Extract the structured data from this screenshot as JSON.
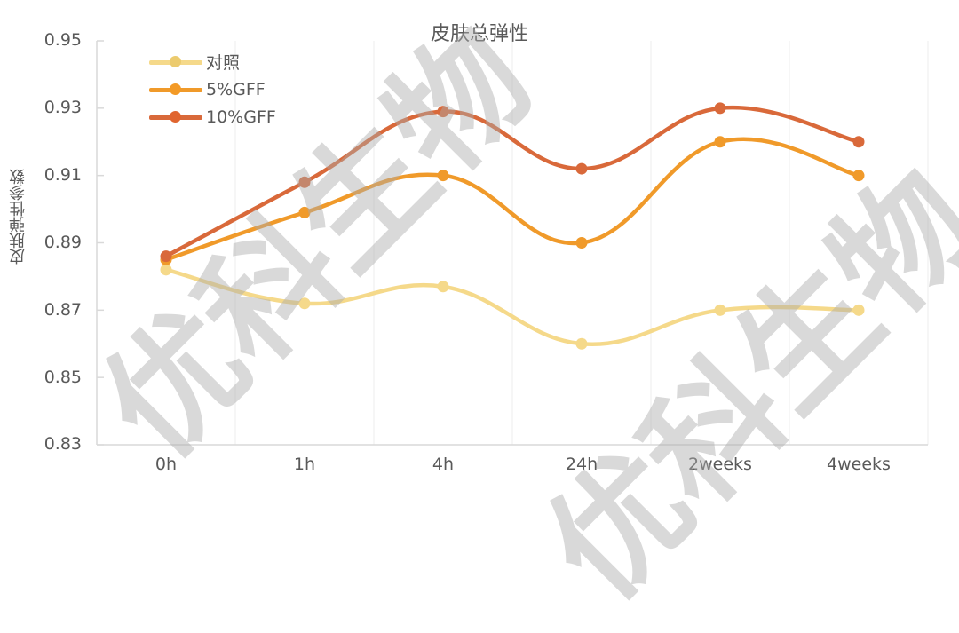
{
  "chart_data": {
    "type": "line",
    "title": "皮肤总弹性",
    "xlabel": "",
    "ylabel": "皮肤弹性参数",
    "categories": [
      "0h",
      "1h",
      "4h",
      "24h",
      "2weeks",
      "4weeks"
    ],
    "ylim": [
      0.83,
      0.95
    ],
    "yticks": [
      "0.95",
      "0.93",
      "0.91",
      "0.89",
      "0.87",
      "0.85",
      "0.83"
    ],
    "grid": {
      "vertical": true,
      "horizontal": false
    },
    "legend_position": "top-left inside",
    "smooth": true,
    "series": [
      {
        "name": "对照",
        "color": "#f5d98a",
        "values": [
          0.882,
          0.872,
          0.877,
          0.86,
          0.87,
          0.87
        ]
      },
      {
        "name": "5%GFF",
        "color": "#f09a2a",
        "values": [
          0.885,
          0.899,
          0.91,
          0.89,
          0.92,
          0.91
        ]
      },
      {
        "name": "10%GFF",
        "color": "#d9693a",
        "values": [
          0.886,
          0.908,
          0.929,
          0.912,
          0.93,
          0.92
        ]
      }
    ]
  },
  "watermark": {
    "text": "优科生物"
  },
  "colors": {
    "axis_text": "#595959",
    "axis_line": "#d9d9d9",
    "grid": "#ececec"
  }
}
